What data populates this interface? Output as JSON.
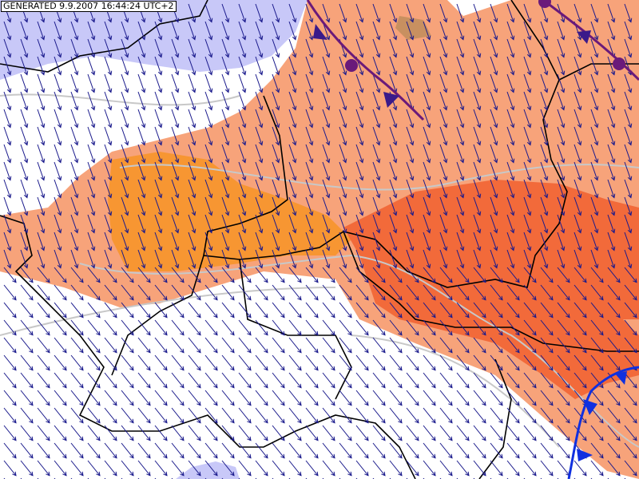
{
  "header": {
    "generated": "GENERATED 9.9.2007 16:44:24 UTC+2"
  }
}
